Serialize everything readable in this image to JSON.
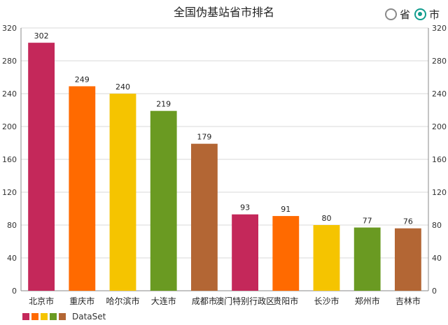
{
  "toggle": {
    "options": [
      {
        "label": "省",
        "selected": false
      },
      {
        "label": "市",
        "selected": true
      }
    ],
    "accent_color": "#119d8e"
  },
  "legend": {
    "label": "DataSet",
    "colors": [
      "#c4285a",
      "#ff6a00",
      "#f5c400",
      "#6a9a22",
      "#b36634"
    ]
  },
  "chart_data": {
    "type": "bar",
    "title": "全国伪基站省市排名",
    "categories": [
      "北京市",
      "重庆市",
      "哈尔滨市",
      "大连市",
      "成都市",
      "澳门特别行政区",
      "贵阳市",
      "长沙市",
      "郑州市",
      "吉林市"
    ],
    "series": [
      {
        "name": "DataSet",
        "values": [
          302,
          249,
          240,
          219,
          179,
          93,
          91,
          80,
          77,
          76
        ]
      }
    ],
    "colors": [
      "#c4285a",
      "#ff6a00",
      "#f5c400",
      "#6a9a22",
      "#b36634",
      "#c4285a",
      "#ff6a00",
      "#f5c400",
      "#6a9a22",
      "#b36634"
    ],
    "ylim": [
      0,
      320
    ],
    "yticks": [
      0,
      40,
      80,
      120,
      160,
      200,
      240,
      280,
      320
    ],
    "grid": true,
    "legend_position": "bottom-left",
    "axis_right": true
  }
}
